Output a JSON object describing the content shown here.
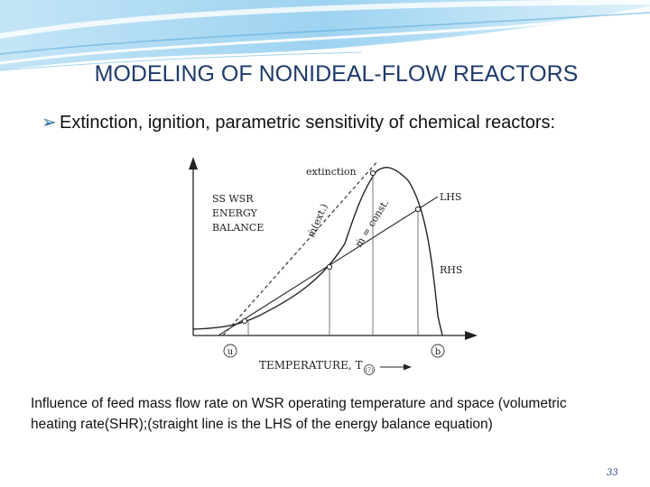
{
  "slide": {
    "title": "MODELING OF NONIDEAL-FLOW REACTORS",
    "bullet": "Extinction, ignition, parametric sensitivity of chemical reactors:",
    "caption_line1": "Influence of feed mass flow rate on WSR operating temperature and space (volumetric",
    "caption_line2": "heating rate(SHR);(straight line is the LHS of the energy balance equation)",
    "page_number": "33"
  },
  "figure": {
    "label_extinction": "extinction",
    "label_balance_1": "SS WSR",
    "label_balance_2": "ENERGY",
    "label_balance_3": "BALANCE",
    "label_mext": "ṁ(ext.)",
    "label_mconst": "ṁ = const.",
    "label_lhs": "LHS",
    "label_rhs": "RHS",
    "label_u": "u",
    "label_b": "b",
    "label_axis": "TEMPERATURE, T",
    "label_axis_marker": "(7)"
  },
  "colors": {
    "title": "#1f3a6b",
    "bullet_marker": "#2e6e9e",
    "header_swirl": "#7fc0e8"
  }
}
